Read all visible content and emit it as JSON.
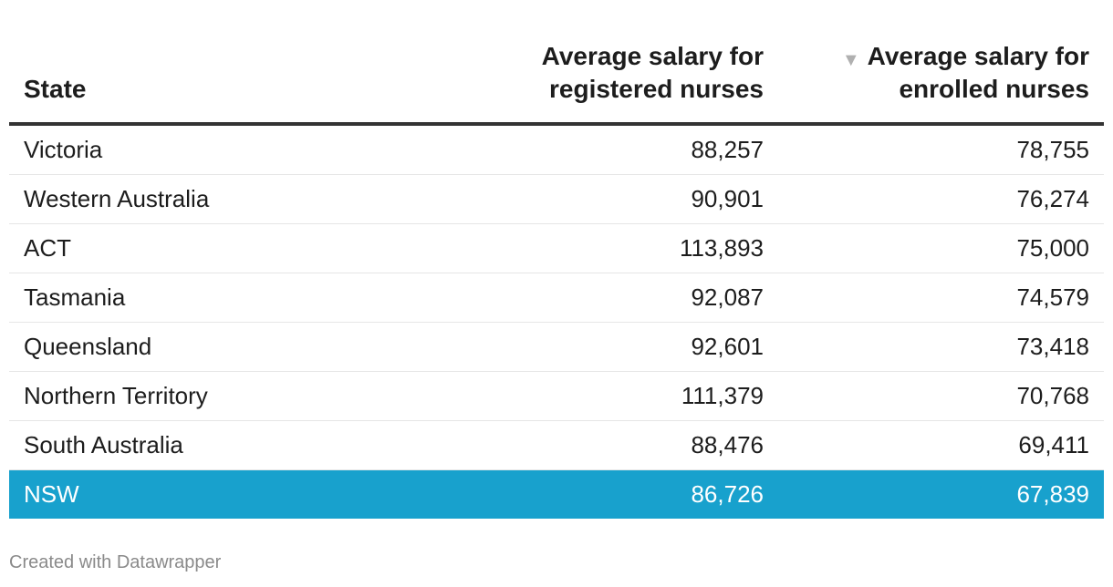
{
  "chart_data": {
    "type": "table",
    "columns": [
      "State",
      "Average salary for registered nurses",
      "Average salary for enrolled nurses"
    ],
    "column_lines": [
      [
        "State"
      ],
      [
        "Average salary for",
        "registered nurses"
      ],
      [
        "Average salary for",
        "enrolled nurses"
      ]
    ],
    "sort_indicator": "▼",
    "sorted_column": 2,
    "sort_order": "descending",
    "rows": [
      {
        "state": "Victoria",
        "registered": "88,257",
        "enrolled": "78,755"
      },
      {
        "state": "Western Australia",
        "registered": "90,901",
        "enrolled": "76,274"
      },
      {
        "state": "ACT",
        "registered": "113,893",
        "enrolled": "75,000"
      },
      {
        "state": "Tasmania",
        "registered": "92,087",
        "enrolled": "74,579"
      },
      {
        "state": "Queensland",
        "registered": "92,601",
        "enrolled": "73,418"
      },
      {
        "state": "Northern Territory",
        "registered": "111,379",
        "enrolled": "70,768"
      },
      {
        "state": "South Australia",
        "registered": "88,476",
        "enrolled": "69,411"
      },
      {
        "state": "NSW",
        "registered": "86,726",
        "enrolled": "67,839",
        "highlighted": true
      }
    ],
    "highlight_color": "#18a1cd"
  },
  "footer": {
    "credit": "Created with Datawrapper"
  }
}
